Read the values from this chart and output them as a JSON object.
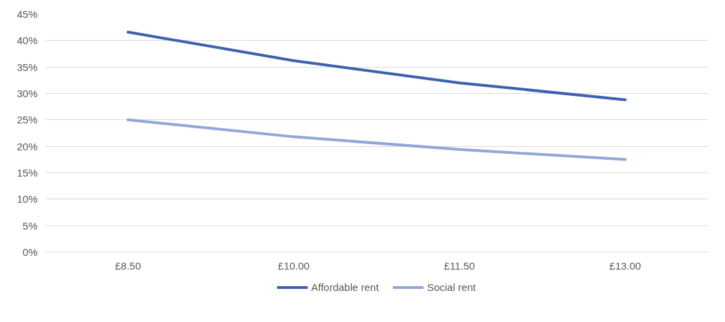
{
  "chart_data": {
    "type": "line",
    "categories": [
      "£8.50",
      "£10.00",
      "£11.50",
      "£13.00"
    ],
    "series": [
      {
        "name": "Affordable rent",
        "color": "#3c62ae",
        "values": [
          41.6,
          36.2,
          32.0,
          28.8
        ]
      },
      {
        "name": "Social rent",
        "color": "#91a6d9",
        "values": [
          25.0,
          21.8,
          19.4,
          17.5
        ]
      }
    ],
    "ylim": [
      0,
      45
    ],
    "yticks": [
      {
        "value": 0,
        "label": "0%"
      },
      {
        "value": 5,
        "label": "5%"
      },
      {
        "value": 10,
        "label": "10%"
      },
      {
        "value": 15,
        "label": "15%"
      },
      {
        "value": 20,
        "label": "20%"
      },
      {
        "value": 25,
        "label": "25%"
      },
      {
        "value": 30,
        "label": "30%"
      },
      {
        "value": 35,
        "label": "35%"
      },
      {
        "value": 40,
        "label": "40%"
      },
      {
        "value": 45,
        "label": "45%"
      }
    ],
    "grid": "y",
    "legend": "bottom",
    "marker": "none",
    "line_style": "solid"
  }
}
